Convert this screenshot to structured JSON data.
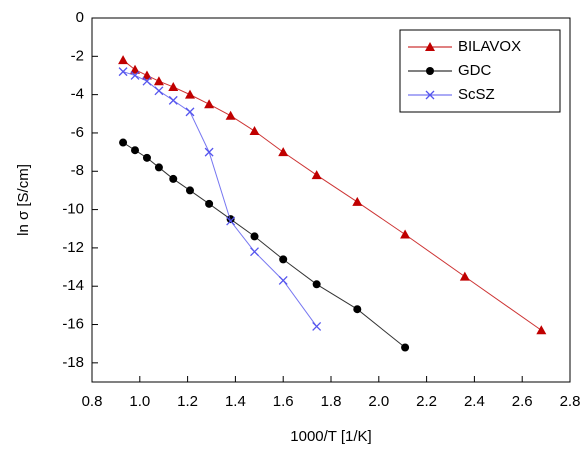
{
  "chart_data": {
    "type": "line",
    "x_label": "1000/T [1/K]",
    "y_label": "ln σ [S/cm]",
    "xlim": [
      0.8,
      2.8
    ],
    "xticks": [
      0.8,
      {
        "value": 1,
        "label": "1.0"
      },
      1.2,
      1.4,
      1.6,
      1.8,
      {
        "value": 2,
        "label": "2.0"
      },
      2.2,
      2.4,
      2.6,
      2.8
    ],
    "ylim": [
      -19,
      0
    ],
    "yticks": [
      0,
      -2,
      -4,
      -6,
      -8,
      -10,
      -12,
      -14,
      -16,
      -18
    ],
    "legend": "upper right",
    "series": [
      {
        "name": "BILAVOX",
        "color": "#c00000",
        "marker": "triangle",
        "x": [
          0.93,
          0.98,
          1.03,
          1.08,
          1.14,
          1.21,
          1.29,
          1.38,
          1.48,
          1.6,
          1.74,
          1.91,
          2.11,
          2.36,
          2.68
        ],
        "values": [
          -2.2,
          -2.7,
          -3.0,
          -3.3,
          -3.6,
          -4.0,
          -4.5,
          -5.1,
          -5.9,
          -7.0,
          -8.2,
          -9.6,
          -11.3,
          -13.5,
          -16.3
        ]
      },
      {
        "name": "GDC",
        "color": "#000000",
        "marker": "circle",
        "x": [
          0.93,
          0.98,
          1.03,
          1.08,
          1.14,
          1.21,
          1.29,
          1.38,
          1.48,
          1.6,
          1.74,
          1.91,
          2.11
        ],
        "values": [
          -6.5,
          -6.9,
          -7.3,
          -7.8,
          -8.4,
          -9.0,
          -9.7,
          -10.5,
          -11.4,
          -12.6,
          -13.9,
          -15.2,
          -17.2
        ]
      },
      {
        "name": "ScSZ",
        "color": "#5555ee",
        "marker": "x",
        "x": [
          0.93,
          0.98,
          1.03,
          1.08,
          1.14,
          1.21,
          1.29,
          1.38,
          1.48,
          1.6,
          1.74
        ],
        "values": [
          -2.8,
          -3.0,
          -3.3,
          -3.8,
          -4.3,
          -4.9,
          -7.0,
          -10.6,
          -12.2,
          -13.7,
          -16.1
        ]
      }
    ]
  }
}
